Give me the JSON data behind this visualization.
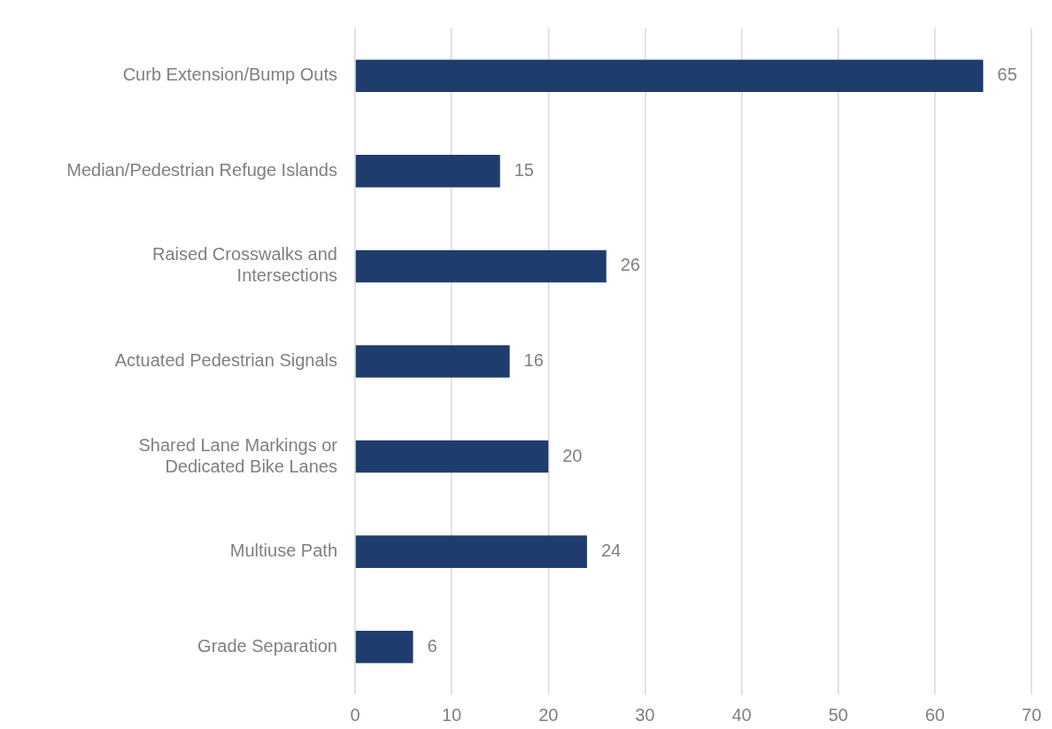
{
  "chart_data": {
    "type": "bar",
    "orientation": "horizontal",
    "categories": [
      "Curb Extension/Bump Outs",
      "Median/Pedestrian Refuge Islands",
      "Raised Crosswalks and\nIntersections",
      "Actuated Pedestrian Signals",
      "Shared Lane Markings or\nDedicated Bike Lanes",
      "Multiuse Path",
      "Grade Separation"
    ],
    "values": [
      65,
      15,
      26,
      16,
      20,
      24,
      6
    ],
    "color": "#1e3d6e",
    "xlim": [
      0,
      70
    ],
    "xticks": [
      0,
      10,
      20,
      30,
      40,
      50,
      60,
      70
    ],
    "grid": "x",
    "data_labels": true
  }
}
